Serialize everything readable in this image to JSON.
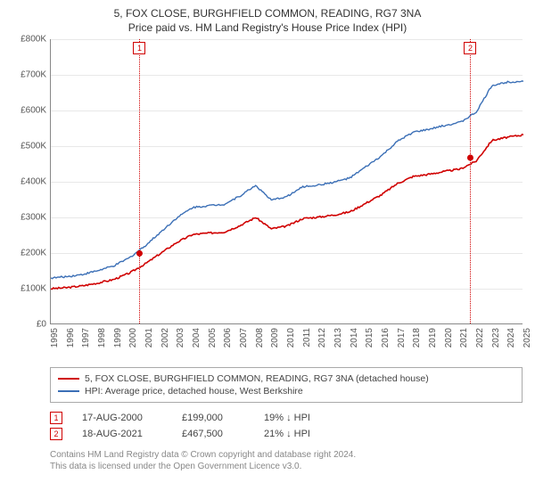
{
  "title_line1": "5, FOX CLOSE, BURGHFIELD COMMON, READING, RG7 3NA",
  "title_line2": "Price paid vs. HM Land Registry's House Price Index (HPI)",
  "chart": {
    "type": "line",
    "background_color": "#ffffff",
    "grid_color": "#e8e8e8",
    "axis_color": "#888888",
    "tick_fontsize": 10,
    "tick_color": "#555555",
    "ylim": [
      0,
      800000
    ],
    "ytick_step": 100000,
    "yticks": [
      "£0",
      "£100K",
      "£200K",
      "£300K",
      "£400K",
      "£500K",
      "£600K",
      "£700K",
      "£800K"
    ],
    "x_years": [
      1995,
      1996,
      1997,
      1998,
      1999,
      2000,
      2001,
      2002,
      2003,
      2004,
      2005,
      2006,
      2007,
      2008,
      2009,
      2010,
      2011,
      2012,
      2013,
      2014,
      2015,
      2016,
      2017,
      2018,
      2019,
      2020,
      2021,
      2022,
      2023,
      2024,
      2025
    ],
    "series": [
      {
        "name": "price_paid",
        "label": "5, FOX CLOSE, BURGHFIELD COMMON, READING, RG7 3NA (detached house)",
        "color": "#d00000",
        "line_width": 1.6,
        "yearly_values": [
          100000,
          103000,
          108000,
          116000,
          126000,
          144000,
          170000,
          200000,
          230000,
          252000,
          256000,
          259000,
          277000,
          300000,
          268000,
          276000,
          297000,
          301000,
          307000,
          316000,
          340000,
          364000,
          395000,
          415000,
          421000,
          429000,
          436000,
          458000,
          516000,
          525000,
          532000
        ]
      },
      {
        "name": "hpi",
        "label": "HPI: Average price, detached house, West Berkshire",
        "color": "#3b6fb6",
        "line_width": 1.4,
        "yearly_values": [
          130000,
          134000,
          140000,
          151000,
          164000,
          187000,
          221000,
          260000,
          299000,
          328000,
          333000,
          337000,
          360000,
          390000,
          348000,
          359000,
          386000,
          391000,
          399000,
          411000,
          442000,
          473000,
          513000,
          539000,
          547000,
          558000,
          567000,
          595000,
          670000,
          680000,
          682000
        ]
      }
    ],
    "markers": [
      {
        "id": "1",
        "year_frac": 2000.63,
        "value": 199000
      },
      {
        "id": "2",
        "year_frac": 2021.63,
        "value": 467500
      }
    ]
  },
  "legend": {
    "border_color": "#aaaaaa",
    "fontsize": 10.5,
    "text_color": "#444444"
  },
  "transactions": [
    {
      "id": "1",
      "date": "17-AUG-2000",
      "price": "£199,000",
      "pct": "19% ↓ HPI"
    },
    {
      "id": "2",
      "date": "18-AUG-2021",
      "price": "£467,500",
      "pct": "21% ↓ HPI"
    }
  ],
  "attribution_line1": "Contains HM Land Registry data © Crown copyright and database right 2024.",
  "attribution_line2": "This data is licensed under the Open Government Licence v3.0."
}
